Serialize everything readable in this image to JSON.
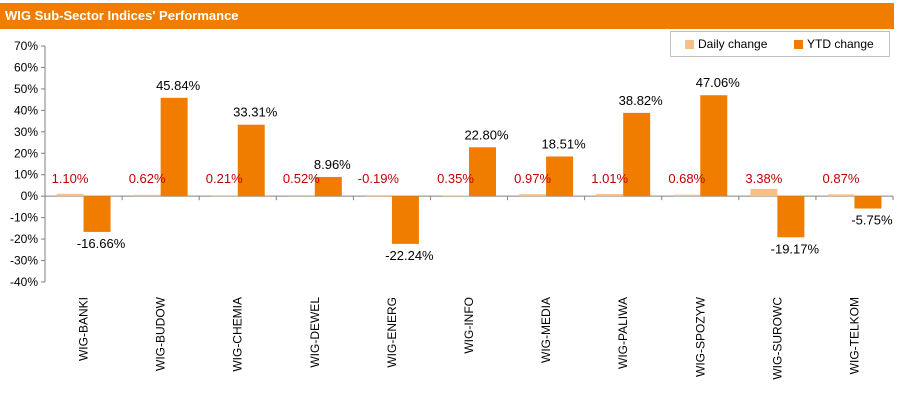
{
  "title": "WIG Sub-Sector Indices' Performance",
  "colors": {
    "header": "#f07d00",
    "daily": "#f5c08a",
    "ytd": "#f07d00",
    "daily_label": "#c00000",
    "axis": "#808080"
  },
  "legend": {
    "daily": "Daily change",
    "ytd": "YTD change"
  },
  "chart_data": {
    "type": "bar",
    "categories": [
      "WIG-BANKI",
      "WIG-BUDOW",
      "WIG-CHEMIA",
      "WIG-DEWEL",
      "WIG-ENERG",
      "WIG-INFO",
      "WIG-MEDIA",
      "WIG-PALIWA",
      "WIG-SPOZYW",
      "WIG-SUROWC",
      "WIG-TELKOM"
    ],
    "series": [
      {
        "name": "Daily change",
        "values": [
          1.1,
          0.62,
          0.21,
          0.52,
          -0.19,
          0.35,
          0.97,
          1.01,
          0.68,
          3.38,
          0.87
        ],
        "labels": [
          "1.10%",
          "0.62%",
          "0.21%",
          "0.52%",
          "-0.19%",
          "0.35%",
          "0.97%",
          "1.01%",
          "0.68%",
          "3.38%",
          "0.87%"
        ]
      },
      {
        "name": "YTD change",
        "values": [
          -16.66,
          45.84,
          33.31,
          8.96,
          -22.24,
          22.8,
          18.51,
          38.82,
          47.06,
          -19.17,
          -5.75
        ],
        "labels": [
          "-16.66%",
          "45.84%",
          "33.31%",
          "8.96%",
          "-22.24%",
          "22.80%",
          "18.51%",
          "38.82%",
          "47.06%",
          "-19.17%",
          "-5.75%"
        ]
      }
    ],
    "ylim": [
      -40,
      70
    ],
    "yticks": [
      -40,
      -30,
      -20,
      -10,
      0,
      10,
      20,
      30,
      40,
      50,
      60,
      70
    ],
    "ytick_labels": [
      "-40%",
      "-30%",
      "-20%",
      "-10%",
      "0%",
      "10%",
      "20%",
      "30%",
      "40%",
      "50%",
      "60%",
      "70%"
    ],
    "grid": false,
    "legend_position": "top-right"
  }
}
